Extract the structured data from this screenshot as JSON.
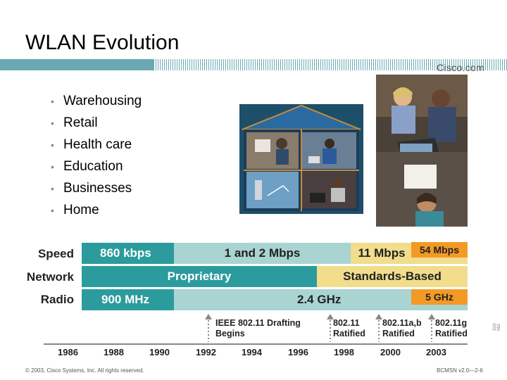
{
  "title": "WLAN Evolution",
  "logo": "Cisco.com",
  "bullets": [
    "Warehousing",
    "Retail",
    "Health care",
    "Education",
    "Businesses",
    "Home"
  ],
  "rows": {
    "speed": {
      "label": "Speed",
      "seg1": "860 kbps",
      "seg2": "1 and 2 Mbps",
      "seg3": "11 Mbps",
      "seg4": "54 Mbps"
    },
    "network": {
      "label": "Network",
      "seg1": "Proprietary",
      "seg2": "Standards-Based"
    },
    "radio": {
      "label": "Radio",
      "seg1": "900 MHz",
      "seg2": "2.4 GHz",
      "seg3": "5 GHz"
    }
  },
  "events": [
    {
      "line1": "IEEE 802.11 Drafting",
      "line2": "Begins"
    },
    {
      "line1": "802.11",
      "line2": "Ratified"
    },
    {
      "line1": "802.11a,b",
      "line2": "Ratified"
    },
    {
      "line1": "802.11g",
      "line2": "Ratified"
    }
  ],
  "years": [
    "1986",
    "1988",
    "1990",
    "1992",
    "1994",
    "1996",
    "1998",
    "2000",
    "2003"
  ],
  "footer": {
    "copyright": "© 2003, Cisco Systems, Inc. All rights reserved.",
    "course": "BCMSN v2.0—2-6",
    "side_id": "310-062"
  },
  "colors": {
    "teal_dark": "#2c9b9d",
    "teal_light": "#a9d4d2",
    "yellow": "#f1dd8c",
    "orange": "#f39a26",
    "header_bar": "#6aa9b4"
  }
}
